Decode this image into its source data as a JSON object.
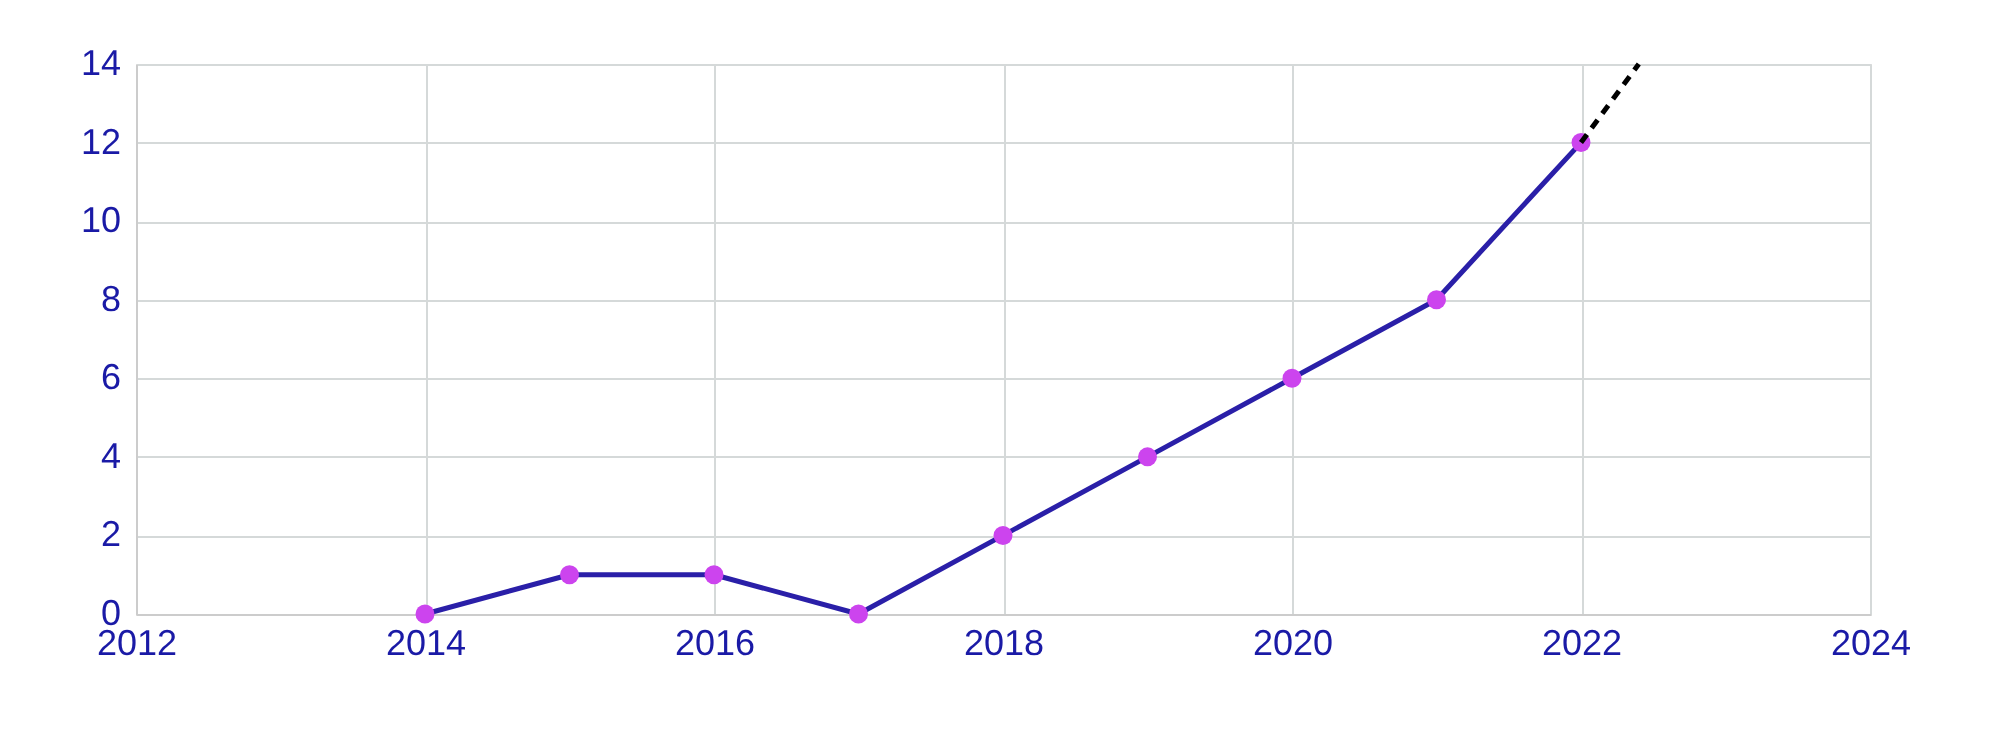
{
  "chart_data": {
    "type": "line",
    "x": [
      2014,
      2015,
      2016,
      2017,
      2018,
      2019,
      2020,
      2021,
      2022
    ],
    "series": [
      {
        "color": "#2a1fa8",
        "colors": [
          "#cc44ee",
          "#cc44ee",
          "#cc44ee",
          "#cc44ee",
          "#cc44ee",
          "#cc44ee",
          "#cc44ee",
          "#cc44ee",
          "#cc44ee"
        ],
        "values": [
          0,
          1,
          1,
          0,
          2,
          4,
          6,
          8,
          12
        ],
        "marker": "circle",
        "line_style": "solid"
      },
      {
        "type": "line",
        "color": "#000000",
        "x": [
          2022,
          2022.4
        ],
        "values": [
          12,
          14
        ],
        "line_style": "dashed",
        "marker": "none"
      }
    ],
    "xlim": [
      2012,
      2024
    ],
    "xticks": [
      2012,
      2014,
      2016,
      2018,
      2020,
      2022,
      2024
    ],
    "ylim": [
      0,
      14
    ],
    "yticks": [
      0,
      2,
      4,
      6,
      8,
      10,
      12,
      14
    ],
    "grid": true
  }
}
